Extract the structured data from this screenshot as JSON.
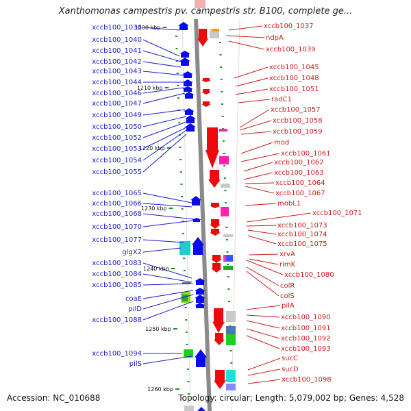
{
  "title": "Xanthomonas campestris pv. campestris str. B100, complete ge...",
  "footer": {
    "accession": "Accession: NC_010688",
    "topology": "Topology: circular; Length: 5,079,002 bp; Genes: 4,528"
  },
  "colors": {
    "forward_label": "#1a1acc",
    "reverse_label": "#cc1a1a",
    "forward_arrow": "#0a0aee",
    "reverse_arrow": "#ee0a0a",
    "backbone": "#8a8a8a",
    "tick": "#1f8f1f"
  },
  "scale_ticks": [
    {
      "label": "1200 kbp",
      "kbp": 1200
    },
    {
      "label": "1210 kbp",
      "kbp": 1210
    },
    {
      "label": "1220 kbp",
      "kbp": 1220
    },
    {
      "label": "1230 kbp",
      "kbp": 1230
    },
    {
      "label": "1240 kbp",
      "kbp": 1240
    },
    {
      "label": "1250 kbp",
      "kbp": 1250
    },
    {
      "label": "1260 kbp",
      "kbp": 1260
    }
  ],
  "forward_genes": [
    "xccb100_1036",
    "xccb100_1040",
    "xccb100_1041",
    "xccb100_1042",
    "xccb100_1043",
    "xccb100_1044",
    "xccb100_1046",
    "xccb100_1047",
    "xccb100_1049",
    "xccb100_1050",
    "xccb100_1052",
    "xccb100_1053",
    "xccb100_1054",
    "xccb100_1055",
    "xccb100_1065",
    "xccb100_1066",
    "xccb100_1068",
    "xccb100_1070",
    "xccb100_1077",
    "glgX2",
    "xccb100_1083",
    "xccb100_1084",
    "xccb100_1085",
    "coaE",
    "pilD",
    "xccb100_1088",
    "xccb100_1094",
    "pilS"
  ],
  "reverse_genes": [
    "xccb100_1037",
    "ndpA",
    "xccb100_1039",
    "xccb100_1045",
    "xccb100_1048",
    "xccb100_1051",
    "radC1",
    "xccb100_1057",
    "xccb100_1058",
    "xccb100_1059",
    "mod",
    "xccb100_1061",
    "xccb100_1062",
    "xccb100_1063",
    "xccb100_1064",
    "xccb100_1067",
    "mobL1",
    "xccb100_1071",
    "xccb100_1073",
    "xccb100_1074",
    "xccb100_1075",
    "xrvA",
    "rimK",
    "xccb100_1080",
    "colR",
    "colS",
    "pilA",
    "xccb100_1090",
    "xccb100_1091",
    "xccb100_1092",
    "xccb100_1093",
    "sucC",
    "sucD",
    "xccb100_1098"
  ]
}
